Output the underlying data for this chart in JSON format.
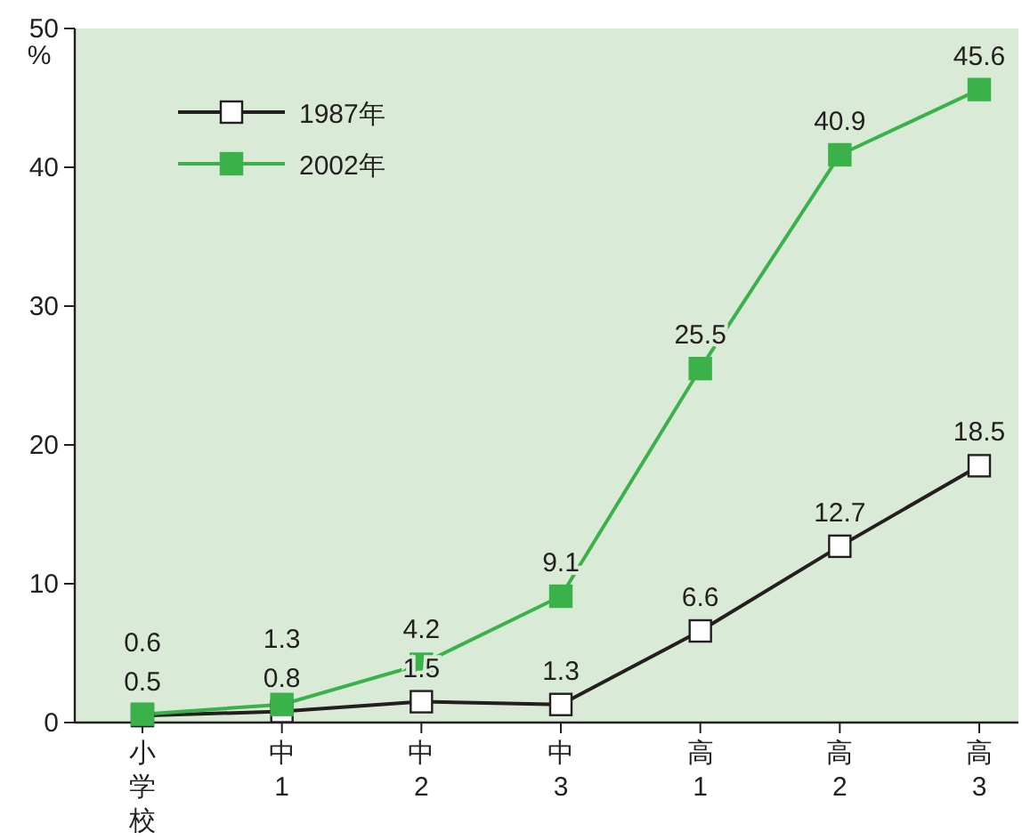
{
  "chart_data": {
    "type": "line",
    "ylabel": "%",
    "categories": [
      "小学校",
      "中1",
      "中2",
      "中3",
      "高1",
      "高2",
      "高3"
    ],
    "series": [
      {
        "name": "1987年",
        "color": "#231f20",
        "values": [
          0.5,
          0.8,
          1.5,
          1.3,
          6.6,
          12.7,
          18.5
        ]
      },
      {
        "name": "2002年",
        "color": "#3bb14a",
        "values": [
          0.6,
          1.3,
          4.2,
          9.1,
          25.5,
          40.9,
          45.6
        ]
      }
    ],
    "ylim": [
      0,
      50
    ],
    "yticks": [
      0,
      10,
      20,
      30,
      40,
      50
    ],
    "marker": "square",
    "line_style": "solid",
    "legend": "top left",
    "grid": false,
    "data_labels": true
  }
}
